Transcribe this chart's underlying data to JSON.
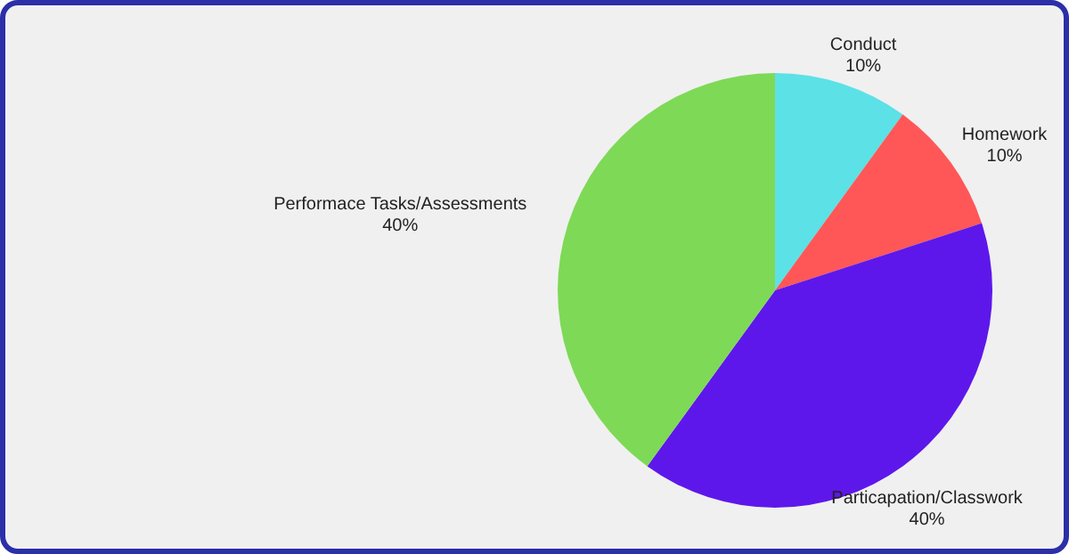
{
  "chart_data": {
    "type": "pie",
    "categories": [
      "Conduct",
      "Homework",
      "Particapation/Classwork",
      "Performace Tasks/Assessments"
    ],
    "values": [
      10,
      10,
      40,
      40
    ],
    "colors": [
      "#5ce1e6",
      "#ff5757",
      "#5e17eb",
      "#7ed957"
    ],
    "value_labels": [
      "10%",
      "10%",
      "40%",
      "40%"
    ],
    "legend": false
  }
}
